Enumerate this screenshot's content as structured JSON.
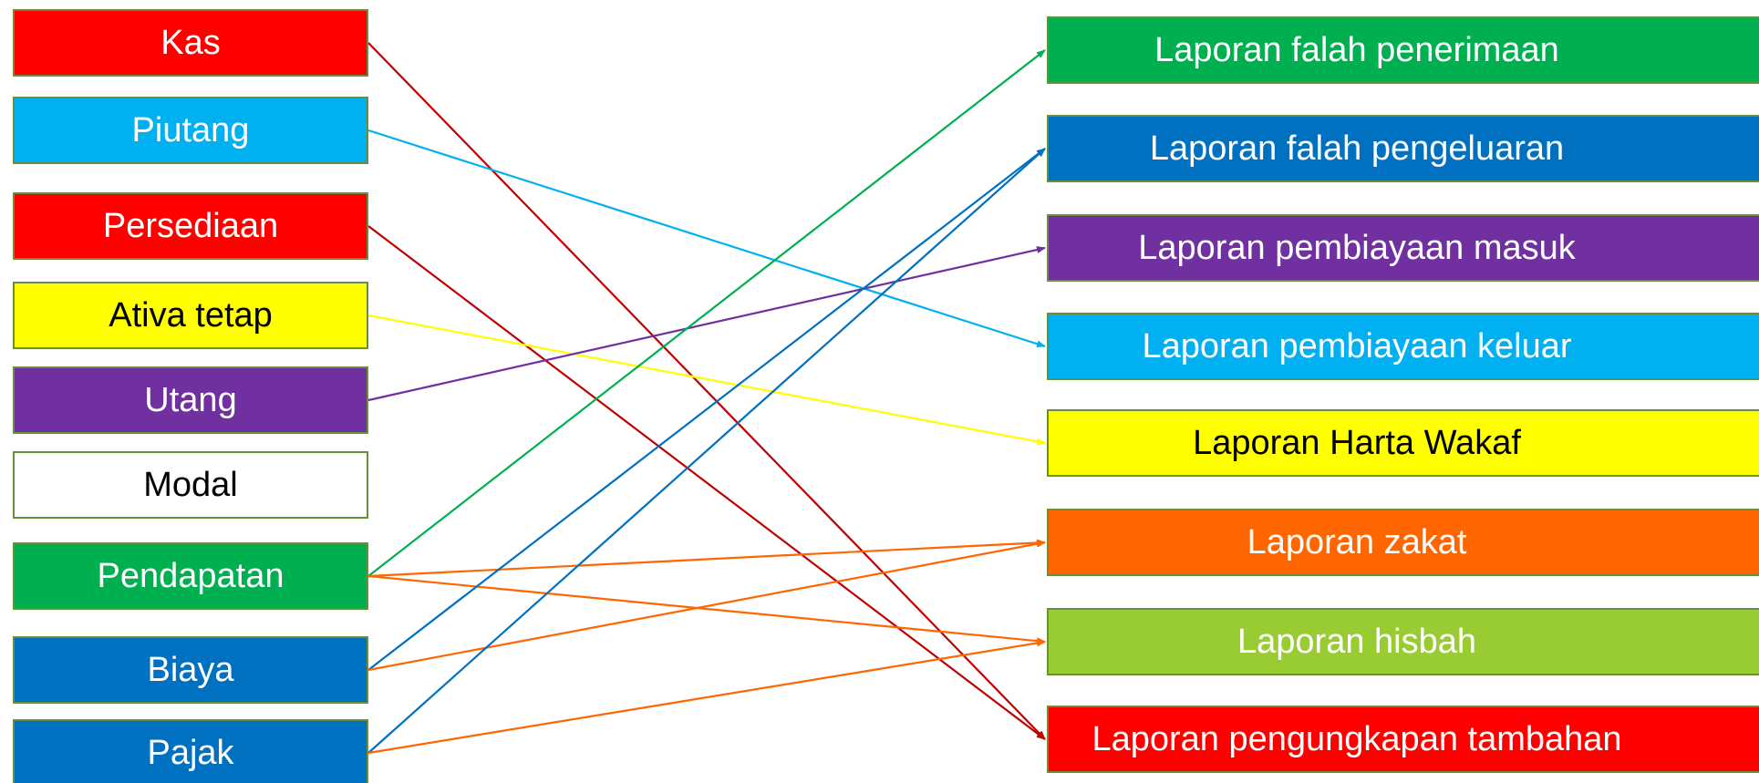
{
  "left_nodes": [
    {
      "id": "kas",
      "label": "Kas",
      "bg": "#ff0000",
      "fg": "#ffffff"
    },
    {
      "id": "piutang",
      "label": "Piutang",
      "bg": "#00b0f0",
      "fg": "#ffffff"
    },
    {
      "id": "persediaan",
      "label": "Persediaan",
      "bg": "#ff0000",
      "fg": "#ffffff"
    },
    {
      "id": "ativa-tetap",
      "label": "Ativa tetap",
      "bg": "#ffff00",
      "fg": "#000000"
    },
    {
      "id": "utang",
      "label": "Utang",
      "bg": "#7030a0",
      "fg": "#ffffff"
    },
    {
      "id": "modal",
      "label": "Modal",
      "bg": "#ffffff",
      "fg": "#000000"
    },
    {
      "id": "pendapatan",
      "label": "Pendapatan",
      "bg": "#00b050",
      "fg": "#ffffff"
    },
    {
      "id": "biaya",
      "label": "Biaya",
      "bg": "#0070c0",
      "fg": "#ffffff"
    },
    {
      "id": "pajak",
      "label": "Pajak",
      "bg": "#0070c0",
      "fg": "#ffffff"
    }
  ],
  "right_nodes": [
    {
      "id": "falah-penerimaan",
      "label": "Laporan falah penerimaan",
      "bg": "#00b050",
      "fg": "#ffffff"
    },
    {
      "id": "falah-pengeluaran",
      "label": "Laporan falah pengeluaran",
      "bg": "#0070c0",
      "fg": "#ffffff"
    },
    {
      "id": "pembiayaan-masuk",
      "label": "Laporan pembiayaan masuk",
      "bg": "#7030a0",
      "fg": "#ffffff"
    },
    {
      "id": "pembiayaan-keluar",
      "label": "Laporan pembiayaan keluar",
      "bg": "#00b0f0",
      "fg": "#ffffff"
    },
    {
      "id": "harta-wakaf",
      "label": "Laporan Harta Wakaf",
      "bg": "#ffff00",
      "fg": "#000000"
    },
    {
      "id": "zakat",
      "label": "Laporan zakat",
      "bg": "#ff6600",
      "fg": "#ffffff"
    },
    {
      "id": "hisbah",
      "label": "Laporan hisbah",
      "bg": "#99cc33",
      "fg": "#ffffff"
    },
    {
      "id": "pengungkapan-tambahan",
      "label": "Laporan pengungkapan tambahan",
      "bg": "#ff0000",
      "fg": "#ffffff"
    }
  ],
  "edges": [
    {
      "from": "kas",
      "to": "pengungkapan-tambahan",
      "color": "#c00000"
    },
    {
      "from": "piutang",
      "to": "pembiayaan-keluar",
      "color": "#00b0f0"
    },
    {
      "from": "persediaan",
      "to": "pengungkapan-tambahan",
      "color": "#c00000"
    },
    {
      "from": "ativa-tetap",
      "to": "harta-wakaf",
      "color": "#ffff00"
    },
    {
      "from": "utang",
      "to": "pembiayaan-masuk",
      "color": "#7030a0"
    },
    {
      "from": "pendapatan",
      "to": "falah-penerimaan",
      "color": "#00b050"
    },
    {
      "from": "pendapatan",
      "to": "zakat",
      "color": "#ff6600"
    },
    {
      "from": "pendapatan",
      "to": "hisbah",
      "color": "#ff6600"
    },
    {
      "from": "biaya",
      "to": "falah-pengeluaran",
      "color": "#0070c0"
    },
    {
      "from": "biaya",
      "to": "zakat",
      "color": "#ff6600"
    },
    {
      "from": "pajak",
      "to": "falah-pengeluaran",
      "color": "#0070c0"
    },
    {
      "from": "pajak",
      "to": "hisbah",
      "color": "#ff6600"
    }
  ]
}
